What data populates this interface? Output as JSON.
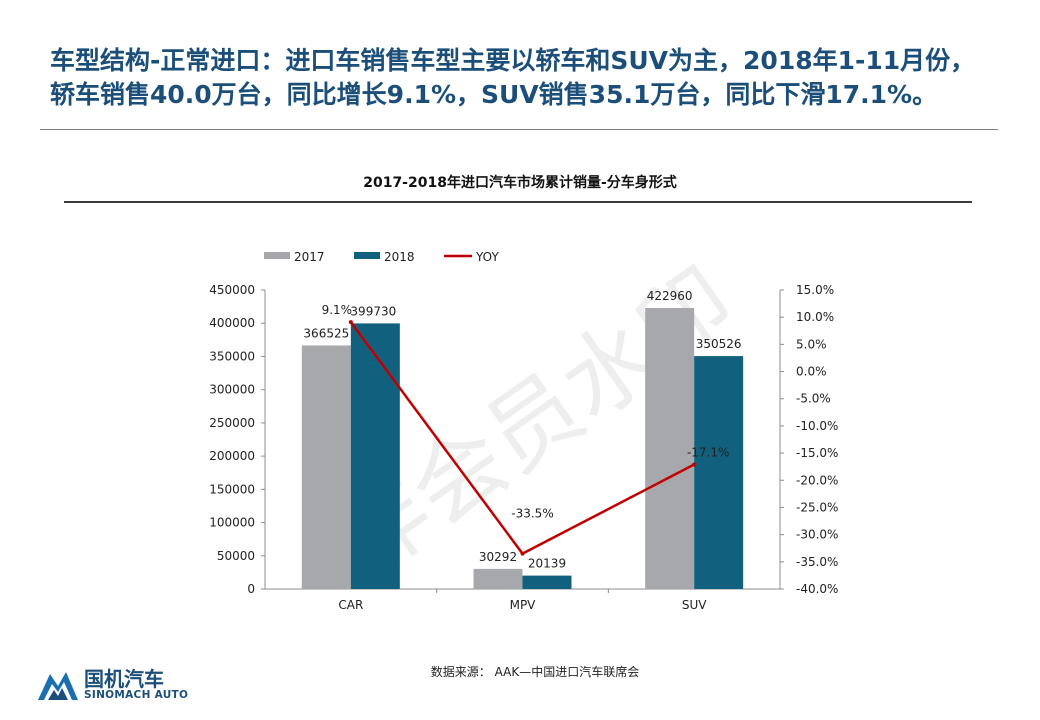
{
  "headline": {
    "line1": "车型结构-正常进口：进口车销售车型主要以轿车和SUV为主，2018年1-11月份，",
    "line2": "轿车销售40.0万台，同比增长9.1%，SUV销售35.1万台，同比下滑17.1%。"
  },
  "colors": {
    "headline": "#1b4f7a",
    "series_2017": "#a6a8ab",
    "series_2018": "#11617e",
    "yoy": "#c00000"
  },
  "watermark": "非会员水印",
  "source": "数据来源：  AAK—中国进口汽车联席会",
  "logo": {
    "name_cn": "国机汽车",
    "name_en": "SINOMACH AUTO"
  },
  "chart_data": {
    "type": "bar",
    "title": "2017-2018年进口汽车市场累计销量-分车身形式",
    "categories": [
      "CAR",
      "MPV",
      "SUV"
    ],
    "series": [
      {
        "name": "2017",
        "type": "bar",
        "axis": "left",
        "values": [
          366525,
          30292,
          422960
        ],
        "labels": [
          "366525",
          "30292",
          "422960"
        ]
      },
      {
        "name": "2018",
        "type": "bar",
        "axis": "left",
        "values": [
          399730,
          20139,
          350526
        ],
        "labels": [
          "399730",
          "20139",
          "350526"
        ]
      },
      {
        "name": "YOY",
        "type": "line",
        "axis": "right",
        "values": [
          9.1,
          -33.5,
          -17.1
        ],
        "labels": [
          "9.1%",
          "-33.5%",
          "-17.1%"
        ]
      }
    ],
    "y_left": {
      "range": [
        0,
        450000
      ],
      "ticks": [
        "0",
        "50000",
        "100000",
        "150000",
        "200000",
        "250000",
        "300000",
        "350000",
        "400000",
        "450000"
      ]
    },
    "y_right": {
      "range": [
        -40,
        15
      ],
      "ticks": [
        "-40.0%",
        "-35.0%",
        "-30.0%",
        "-25.0%",
        "-20.0%",
        "-15.0%",
        "-10.0%",
        "-5.0%",
        "0.0%",
        "5.0%",
        "10.0%",
        "15.0%"
      ]
    },
    "grid": false,
    "legend_position": "top-left"
  }
}
